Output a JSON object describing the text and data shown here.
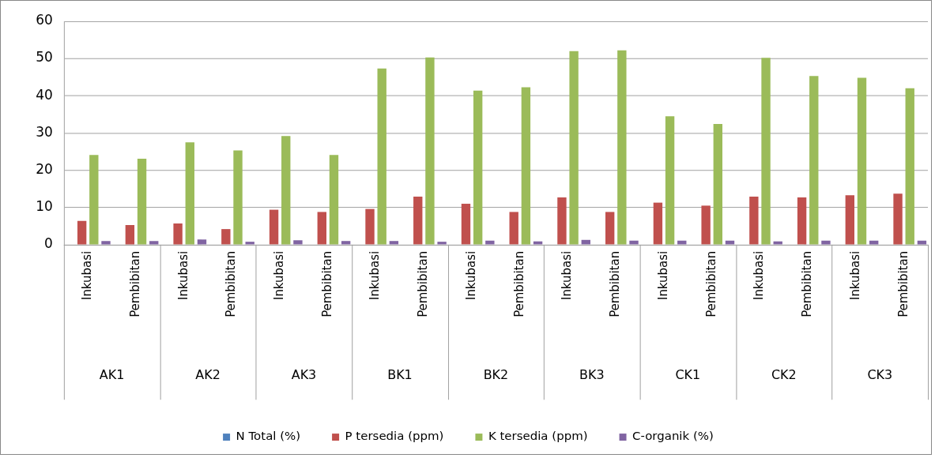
{
  "chart_data": {
    "type": "bar",
    "categories": [
      "Inkubasi",
      "Pembibitan",
      "Inkubasi",
      "Pembibitan",
      "Inkubasi",
      "Pembibitan",
      "Inkubasi",
      "Pembibitan",
      "Inkubasi",
      "Pembibitan",
      "Inkubasi",
      "Pembibitan",
      "Inkubasi",
      "Pembibitan",
      "Inkubasi",
      "Pembibitan",
      "Inkubasi",
      "Pembibitan"
    ],
    "annotations": [
      "AK1",
      "AK2",
      "AK3",
      "BK1",
      "BK2",
      "BK3",
      "CK1",
      "CK2",
      "CK3"
    ],
    "series": [
      {
        "name": "N Total (%)",
        "color": "#4f81bd",
        "values": [
          0.1,
          0.1,
          0.1,
          0.1,
          0.1,
          0.1,
          0.1,
          0.1,
          0.1,
          0.1,
          0.1,
          0.1,
          0.1,
          0.1,
          0.1,
          0.1,
          0.1,
          0.1
        ]
      },
      {
        "name": "P tersedia (ppm)",
        "color": "#c0504d",
        "values": [
          6.4,
          5.3,
          5.7,
          4.2,
          9.4,
          8.8,
          9.6,
          12.9,
          11.0,
          8.8,
          12.7,
          8.8,
          11.3,
          10.5,
          12.9,
          12.7,
          13.3,
          13.7
        ]
      },
      {
        "name": "K tersedia (ppm)",
        "color": "#9bbb59",
        "values": [
          24.1,
          23.1,
          27.5,
          25.3,
          29.2,
          24.1,
          47.3,
          50.3,
          41.4,
          42.3,
          52.0,
          52.2,
          34.5,
          32.4,
          50.2,
          45.3,
          44.8,
          42.0
        ]
      },
      {
        "name": "C-organik (%)",
        "color": "#8064a2",
        "values": [
          1.0,
          1.0,
          1.4,
          0.8,
          1.2,
          1.0,
          1.0,
          0.8,
          1.1,
          0.9,
          1.3,
          1.1,
          1.1,
          1.1,
          0.9,
          1.1,
          1.1,
          1.1
        ]
      }
    ],
    "ylim": [
      0,
      60
    ],
    "yticks": [
      0,
      10,
      20,
      30,
      40,
      50,
      60
    ],
    "grid": "y",
    "legend": "bottom"
  }
}
